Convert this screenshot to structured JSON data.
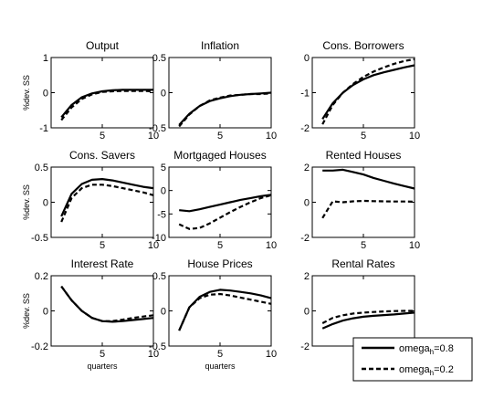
{
  "chart_data": {
    "type": "line",
    "layout": "3x3 grid of subplots",
    "x_label": "quarters",
    "y_label": "%dev. SS",
    "legend": {
      "placement": "bottom-right",
      "entries": [
        {
          "label": "omega",
          "subscript": "h",
          "suffix": "=0.8",
          "style": "solid"
        },
        {
          "label": "omega",
          "subscript": "h",
          "suffix": "=0.2",
          "style": "dashed"
        }
      ]
    },
    "series_names": [
      "omega_h=0.8",
      "omega_h=0.2"
    ],
    "x": [
      1,
      2,
      3,
      4,
      5,
      6,
      7,
      8,
      9,
      10
    ],
    "panels": [
      {
        "title": "Output",
        "ylim": [
          -1,
          1
        ],
        "yticks": [
          "1",
          "0",
          "-1"
        ],
        "xticks": [
          "5",
          "10"
        ],
        "series": [
          {
            "name": "omega_h=0.8",
            "values": [
              -0.7,
              -0.35,
              -0.13,
              -0.02,
              0.04,
              0.07,
              0.08,
              0.08,
              0.08,
              0.08
            ]
          },
          {
            "name": "omega_h=0.2",
            "values": [
              -0.78,
              -0.42,
              -0.18,
              -0.05,
              0.02,
              0.04,
              0.05,
              0.05,
              0.05,
              0.04
            ]
          }
        ]
      },
      {
        "title": "Inflation",
        "ylim": [
          -0.5,
          0.5
        ],
        "yticks": [
          "0.5",
          "0",
          "-0.5"
        ],
        "xticks": [
          "5",
          "10"
        ],
        "series": [
          {
            "name": "omega_h=0.8",
            "values": [
              -0.46,
              -0.3,
              -0.19,
              -0.12,
              -0.08,
              -0.05,
              -0.03,
              -0.02,
              -0.01,
              0.0
            ]
          },
          {
            "name": "omega_h=0.2",
            "values": [
              -0.48,
              -0.31,
              -0.19,
              -0.11,
              -0.07,
              -0.04,
              -0.03,
              -0.02,
              -0.02,
              -0.01
            ]
          }
        ]
      },
      {
        "title": "Cons. Borrowers",
        "ylim": [
          -2,
          0
        ],
        "yticks": [
          "0",
          "-1",
          "-2"
        ],
        "xticks": [
          "5",
          "10"
        ],
        "series": [
          {
            "name": "omega_h=0.8",
            "values": [
              -1.75,
              -1.3,
              -1.0,
              -0.78,
              -0.62,
              -0.5,
              -0.42,
              -0.35,
              -0.28,
              -0.22
            ]
          },
          {
            "name": "omega_h=0.2",
            "values": [
              -1.9,
              -1.35,
              -1.0,
              -0.75,
              -0.55,
              -0.4,
              -0.28,
              -0.18,
              -0.1,
              -0.05
            ]
          }
        ]
      },
      {
        "title": "Cons. Savers",
        "ylim": [
          -0.5,
          0.5
        ],
        "yticks": [
          "0.5",
          "0",
          "-0.5"
        ],
        "xticks": [
          "5",
          "10"
        ],
        "series": [
          {
            "name": "omega_h=0.8",
            "values": [
              -0.2,
              0.12,
              0.26,
              0.32,
              0.33,
              0.31,
              0.28,
              0.25,
              0.22,
              0.2
            ]
          },
          {
            "name": "omega_h=0.2",
            "values": [
              -0.28,
              0.06,
              0.2,
              0.25,
              0.25,
              0.23,
              0.2,
              0.17,
              0.14,
              0.1
            ]
          }
        ]
      },
      {
        "title": "Mortgaged Houses",
        "ylim": [
          -10,
          5
        ],
        "yticks": [
          "5",
          "0",
          "-5",
          "-10"
        ],
        "xticks": [
          "5",
          "10"
        ],
        "series": [
          {
            "name": "omega_h=0.8",
            "values": [
              -4.2,
              -4.4,
              -4.0,
              -3.5,
              -3.0,
              -2.5,
              -2.0,
              -1.6,
              -1.2,
              -0.9
            ]
          },
          {
            "name": "omega_h=0.2",
            "values": [
              -7.2,
              -8.2,
              -8.0,
              -7.0,
              -5.8,
              -4.6,
              -3.5,
              -2.5,
              -1.6,
              -1.0
            ]
          }
        ]
      },
      {
        "title": "Rented Houses",
        "ylim": [
          -2,
          2
        ],
        "yticks": [
          "2",
          "0",
          "-2"
        ],
        "xticks": [
          "5",
          "10"
        ],
        "series": [
          {
            "name": "omega_h=0.8",
            "values": [
              1.8,
              1.8,
              1.85,
              1.72,
              1.58,
              1.38,
              1.22,
              1.06,
              0.92,
              0.78
            ]
          },
          {
            "name": "omega_h=0.2",
            "values": [
              -0.9,
              0.05,
              0.0,
              0.05,
              0.08,
              0.06,
              0.05,
              0.04,
              0.04,
              0.03
            ]
          }
        ]
      },
      {
        "title": "Interest Rate",
        "ylim": [
          -0.2,
          0.2
        ],
        "yticks": [
          "0.2",
          "0",
          "-0.2"
        ],
        "xticks": [
          "5",
          "10"
        ],
        "series": [
          {
            "name": "omega_h=0.8",
            "values": [
              0.14,
              0.06,
              0.0,
              -0.04,
              -0.058,
              -0.062,
              -0.058,
              -0.052,
              -0.046,
              -0.04
            ]
          },
          {
            "name": "omega_h=0.2",
            "values": [
              0.14,
              0.06,
              0.0,
              -0.04,
              -0.058,
              -0.058,
              -0.05,
              -0.04,
              -0.032,
              -0.025
            ]
          }
        ]
      },
      {
        "title": "House Prices",
        "ylim": [
          -0.5,
          0.5
        ],
        "yticks": [
          "0.5",
          "0",
          "-0.5"
        ],
        "xticks": [
          "5",
          "10"
        ],
        "series": [
          {
            "name": "omega_h=0.8",
            "values": [
              -0.28,
              0.05,
              0.2,
              0.27,
              0.3,
              0.29,
              0.27,
              0.25,
              0.22,
              0.18
            ]
          },
          {
            "name": "omega_h=0.2",
            "values": [
              -0.28,
              0.05,
              0.18,
              0.23,
              0.24,
              0.22,
              0.19,
              0.16,
              0.13,
              0.1
            ]
          }
        ]
      },
      {
        "title": "Rental Rates",
        "ylim": [
          -2,
          2
        ],
        "yticks": [
          "2",
          "0",
          "-2"
        ],
        "xticks": [
          "5",
          "10"
        ],
        "series": [
          {
            "name": "omega_h=0.8",
            "values": [
              -1.0,
              -0.75,
              -0.55,
              -0.42,
              -0.33,
              -0.28,
              -0.24,
              -0.2,
              -0.15,
              -0.1
            ]
          },
          {
            "name": "omega_h=0.2",
            "values": [
              -0.7,
              -0.4,
              -0.25,
              -0.15,
              -0.1,
              -0.06,
              -0.03,
              -0.01,
              0.0,
              0.0
            ]
          }
        ]
      }
    ]
  }
}
